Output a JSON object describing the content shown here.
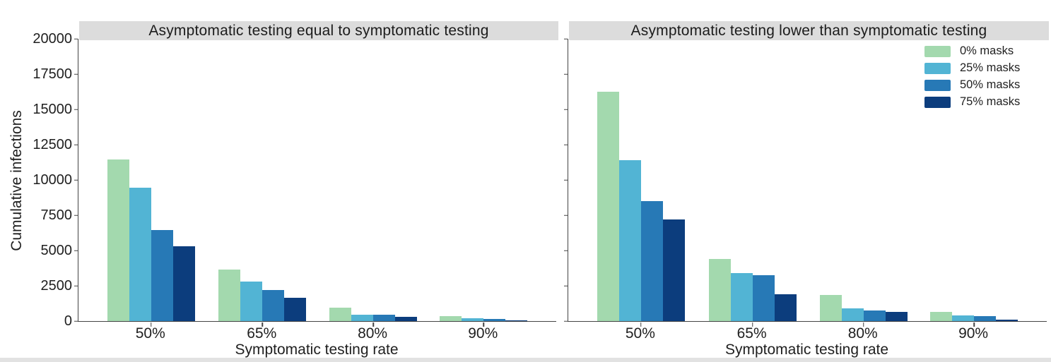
{
  "figure": {
    "background": "#ffffff",
    "title_band_color": "#dcdcdc",
    "spine_color": "#444444",
    "bottom_edge_strip_color": "#e2e2e2"
  },
  "legend": {
    "entries": [
      "0% masks",
      "25% masks",
      "50% masks",
      "75% masks"
    ],
    "colors": [
      "#a3d9ae",
      "#52b4d4",
      "#2779b6",
      "#0c3d7d"
    ],
    "position": "upper right of right panel"
  },
  "chart_data": [
    {
      "type": "bar",
      "title": "Asymptomatic testing equal to symptomatic testing",
      "categories": [
        "50%",
        "65%",
        "80%",
        "90%"
      ],
      "series": [
        {
          "name": "0% masks",
          "color": "#a3d9ae",
          "values": [
            11450,
            3650,
            950,
            330
          ]
        },
        {
          "name": "25% masks",
          "color": "#52b4d4",
          "values": [
            9450,
            2800,
            430,
            190
          ]
        },
        {
          "name": "50% masks",
          "color": "#2779b6",
          "values": [
            6450,
            2200,
            450,
            130
          ]
        },
        {
          "name": "75% masks",
          "color": "#0c3d7d",
          "values": [
            5300,
            1650,
            280,
            50
          ]
        }
      ],
      "xlabel": "Symptomatic testing rate",
      "ylabel": "Cumulative infections",
      "ylim": [
        0,
        20000
      ],
      "yticks": [
        0,
        2500,
        5000,
        7500,
        10000,
        12500,
        15000,
        17500,
        20000
      ],
      "grid": false,
      "legend": "none"
    },
    {
      "type": "bar",
      "title": "Asymptomatic testing lower than symptomatic testing",
      "categories": [
        "50%",
        "65%",
        "80%",
        "90%"
      ],
      "series": [
        {
          "name": "0% masks",
          "color": "#a3d9ae",
          "values": [
            16250,
            4400,
            1850,
            650
          ]
        },
        {
          "name": "25% masks",
          "color": "#52b4d4",
          "values": [
            11400,
            3400,
            900,
            400
          ]
        },
        {
          "name": "50% masks",
          "color": "#2779b6",
          "values": [
            8500,
            3250,
            750,
            330
          ]
        },
        {
          "name": "75% masks",
          "color": "#0c3d7d",
          "values": [
            7200,
            1900,
            650,
            80
          ]
        }
      ],
      "xlabel": "Symptomatic testing rate",
      "ylabel": "",
      "ylim": [
        0,
        20000
      ],
      "yticks": [
        0,
        2500,
        5000,
        7500,
        10000,
        12500,
        15000,
        17500,
        20000
      ],
      "grid": false,
      "legend": "upper right"
    }
  ]
}
